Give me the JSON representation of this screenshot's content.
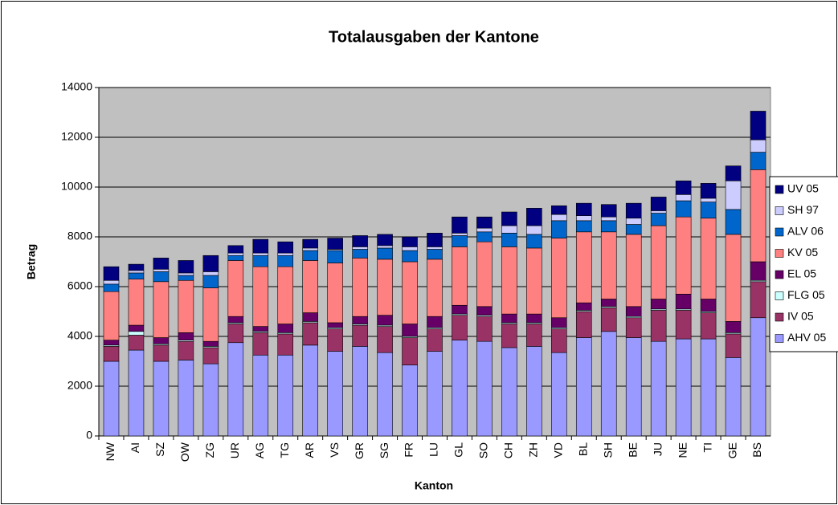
{
  "chart_data": {
    "type": "stacked_bar",
    "title": "Totalausgaben der Kantone",
    "x_label": "Kanton",
    "y_label": "Betrag",
    "categories": [
      "NW",
      "AI",
      "SZ",
      "OW",
      "ZG",
      "UR",
      "AG",
      "TG",
      "AR",
      "VS",
      "GR",
      "SG",
      "FR",
      "LU",
      "GL",
      "SO",
      "CH",
      "ZH",
      "VD",
      "BL",
      "SH",
      "BE",
      "JU",
      "NE",
      "TI",
      "GE",
      "BS"
    ],
    "series": [
      {
        "name": "AHV 05",
        "color": "#9999ff",
        "values": [
          3000,
          3450,
          3000,
          3050,
          2900,
          3750,
          3250,
          3250,
          3650,
          3400,
          3600,
          3350,
          2850,
          3400,
          3850,
          3800,
          3550,
          3600,
          3350,
          3950,
          4200,
          3950,
          3800,
          3900,
          3900,
          3150,
          4750
        ]
      },
      {
        "name": "IV 05",
        "color": "#993366",
        "values": [
          600,
          600,
          650,
          750,
          650,
          750,
          900,
          850,
          900,
          900,
          850,
          1050,
          1100,
          900,
          1000,
          1000,
          950,
          900,
          950,
          1050,
          950,
          800,
          1250,
          1150,
          1050,
          950,
          1450
        ]
      },
      {
        "name": "FLG 05",
        "color": "#ccffff",
        "values": [
          50,
          150,
          50,
          50,
          50,
          50,
          50,
          50,
          50,
          50,
          50,
          50,
          50,
          50,
          50,
          50,
          50,
          50,
          50,
          50,
          50,
          50,
          50,
          50,
          50,
          50,
          50
        ]
      },
      {
        "name": "EL 05",
        "color": "#660066",
        "values": [
          200,
          250,
          250,
          300,
          200,
          250,
          200,
          350,
          350,
          200,
          300,
          400,
          500,
          450,
          350,
          350,
          350,
          350,
          400,
          300,
          300,
          400,
          400,
          600,
          500,
          450,
          750
        ]
      },
      {
        "name": "KV 05",
        "color": "#ff8080",
        "values": [
          1950,
          1850,
          2250,
          2100,
          2150,
          2250,
          2400,
          2300,
          2100,
          2400,
          2350,
          2250,
          2500,
          2300,
          2350,
          2600,
          2700,
          2650,
          3200,
          2850,
          2700,
          2900,
          2950,
          3100,
          3250,
          3500,
          3700
        ]
      },
      {
        "name": "ALV 06",
        "color": "#0066cc",
        "values": [
          300,
          250,
          400,
          200,
          500,
          200,
          450,
          450,
          400,
          500,
          350,
          450,
          450,
          400,
          450,
          400,
          550,
          550,
          700,
          450,
          450,
          400,
          500,
          650,
          650,
          1000,
          700
        ]
      },
      {
        "name": "SH 97",
        "color": "#ccccff",
        "values": [
          150,
          100,
          100,
          100,
          150,
          100,
          100,
          100,
          100,
          50,
          100,
          100,
          150,
          100,
          100,
          150,
          300,
          350,
          250,
          200,
          150,
          250,
          100,
          250,
          150,
          1150,
          500
        ]
      },
      {
        "name": "UV 05",
        "color": "#000080",
        "values": [
          550,
          250,
          450,
          500,
          650,
          300,
          550,
          450,
          350,
          450,
          450,
          450,
          400,
          550,
          650,
          450,
          550,
          700,
          350,
          500,
          500,
          600,
          550,
          550,
          600,
          600,
          1150
        ]
      }
    ],
    "ylim": [
      0,
      14000
    ],
    "yticks": [
      0,
      2000,
      4000,
      6000,
      8000,
      10000,
      12000,
      14000
    ],
    "grid": true,
    "legend": "right",
    "plot_background": "#c0c0c0"
  }
}
